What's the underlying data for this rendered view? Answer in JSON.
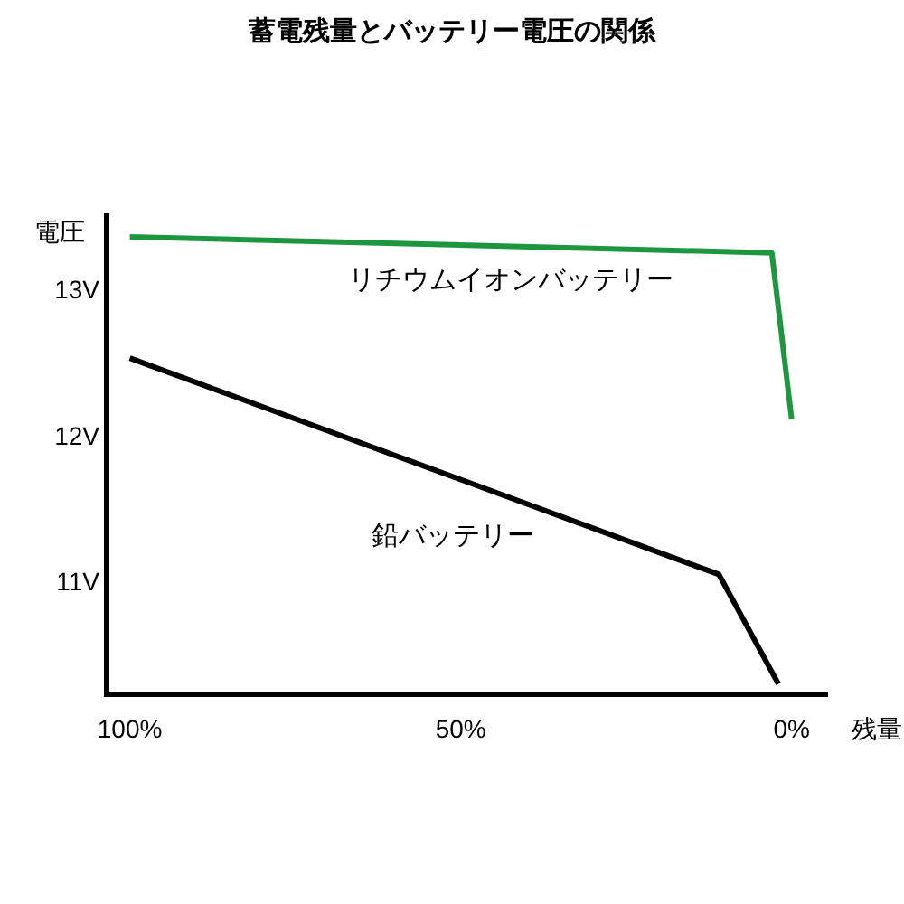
{
  "chart_data": {
    "type": "line",
    "title": "蓄電残量とバッテリー電圧の関係",
    "xlabel": "残量",
    "ylabel": "電圧",
    "series": [
      {
        "name": "リチウムイオンバッテリー",
        "color": "#1e9640",
        "x": [
          100,
          3,
          0
        ],
        "values": [
          13.36,
          13.25,
          12.11
        ]
      },
      {
        "name": "鉛バッテリー",
        "color": "#000000",
        "x": [
          100,
          11,
          2
        ],
        "values": [
          12.53,
          11.05,
          10.3
        ]
      }
    ],
    "xlim": [
      103.5,
      -5.5
    ],
    "xticks": [
      {
        "value": 100,
        "label": "100%"
      },
      {
        "value": 50,
        "label": "50%"
      },
      {
        "value": 0,
        "label": "0%"
      }
    ],
    "ylim": [
      10.23,
      13.52
    ],
    "yticks": [
      {
        "value": 11,
        "label": "11V"
      },
      {
        "value": 12,
        "label": "12V"
      },
      {
        "value": 13,
        "label": "13V"
      }
    ]
  }
}
